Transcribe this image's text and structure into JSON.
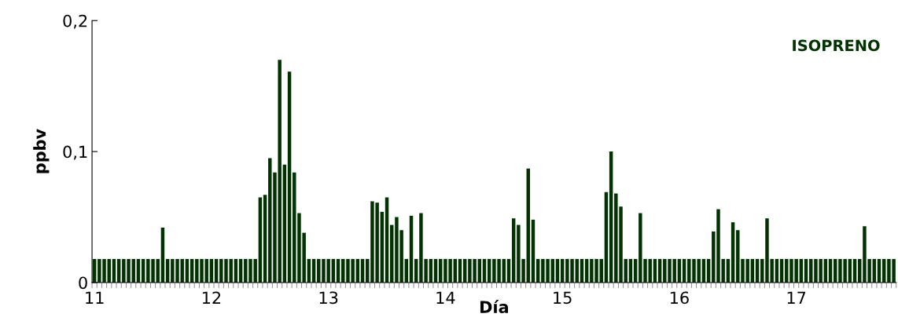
{
  "chart_data": {
    "type": "bar",
    "title": "ISOPRENO",
    "xlabel": "Día",
    "ylabel": "ppbv",
    "color": "#003300",
    "categories": [
      "11",
      null,
      null,
      null,
      null,
      null,
      null,
      null,
      null,
      null,
      null,
      null,
      null,
      null,
      null,
      null,
      null,
      null,
      null,
      null,
      null,
      null,
      null,
      null,
      "12",
      null,
      null,
      null,
      null,
      null,
      null,
      null,
      null,
      null,
      null,
      null,
      null,
      null,
      null,
      null,
      null,
      null,
      null,
      null,
      null,
      null,
      null,
      null,
      "13",
      null,
      null,
      null,
      null,
      null,
      null,
      null,
      null,
      null,
      null,
      null,
      null,
      null,
      null,
      null,
      null,
      null,
      null,
      null,
      null,
      null,
      null,
      null,
      "14",
      null,
      null,
      null,
      null,
      null,
      null,
      null,
      null,
      null,
      null,
      null,
      null,
      null,
      null,
      null,
      null,
      null,
      null,
      null,
      null,
      null,
      null,
      null,
      "15",
      null,
      null,
      null,
      null,
      null,
      null,
      null,
      null,
      null,
      null,
      null,
      null,
      null,
      null,
      null,
      null,
      null,
      null,
      null,
      null,
      null,
      null,
      null,
      "16",
      null,
      null,
      null,
      null,
      null,
      null,
      null,
      null,
      null,
      null,
      null,
      null,
      null,
      null,
      null,
      null,
      null,
      null,
      null,
      null,
      null,
      null,
      null,
      "17",
      null,
      null,
      null,
      null,
      null,
      null,
      null,
      null,
      null,
      null,
      null,
      null,
      null,
      null,
      null,
      null,
      null,
      null,
      null,
      null
    ],
    "values": [
      0.018,
      0.018,
      0.018,
      0.018,
      0.018,
      0.018,
      0.018,
      0.018,
      0.018,
      0.018,
      0.018,
      0.018,
      0.018,
      0.018,
      0.042,
      0.018,
      0.018,
      0.018,
      0.018,
      0.018,
      0.018,
      0.018,
      0.018,
      0.018,
      0.018,
      0.018,
      0.018,
      0.018,
      0.018,
      0.018,
      0.018,
      0.018,
      0.018,
      0.018,
      0.065,
      0.067,
      0.095,
      0.084,
      0.17,
      0.09,
      0.161,
      0.084,
      0.053,
      0.038,
      0.018,
      0.018,
      0.018,
      0.018,
      0.018,
      0.018,
      0.018,
      0.018,
      0.018,
      0.018,
      0.018,
      0.018,
      0.018,
      0.062,
      0.061,
      0.054,
      0.065,
      0.044,
      0.05,
      0.04,
      0.018,
      0.051,
      0.018,
      0.053,
      0.018,
      0.018,
      0.018,
      0.018,
      0.018,
      0.018,
      0.018,
      0.018,
      0.018,
      0.018,
      0.018,
      0.018,
      0.018,
      0.018,
      0.018,
      0.018,
      0.018,
      0.018,
      0.049,
      0.044,
      0.018,
      0.087,
      0.048,
      0.018,
      0.018,
      0.018,
      0.018,
      0.018,
      0.018,
      0.018,
      0.018,
      0.018,
      0.018,
      0.018,
      0.018,
      0.018,
      0.018,
      0.069,
      0.1,
      0.068,
      0.058,
      0.018,
      0.018,
      0.018,
      0.053,
      0.018,
      0.018,
      0.018,
      0.018,
      0.018,
      0.018,
      0.018,
      0.018,
      0.018,
      0.018,
      0.018,
      0.018,
      0.018,
      0.018,
      0.039,
      0.056,
      0.018,
      0.018,
      0.046,
      0.04,
      0.018,
      0.018,
      0.018,
      0.018,
      0.018,
      0.049,
      0.018,
      0.018,
      0.018,
      0.018,
      0.018,
      0.018,
      0.018,
      0.018,
      0.018,
      0.018,
      0.018,
      0.018,
      0.018,
      0.018,
      0.018,
      0.018,
      0.018,
      0.018,
      0.018,
      0.043,
      0.018,
      0.018,
      0.018,
      0.018,
      0.018,
      0.018
    ],
    "ylim": [
      0,
      0.2
    ],
    "yticks": [
      0,
      {
        "value": 0.1,
        "label": "0,1"
      },
      {
        "value": 0.2,
        "label": "0,2"
      }
    ],
    "grid": false,
    "legend": false
  }
}
